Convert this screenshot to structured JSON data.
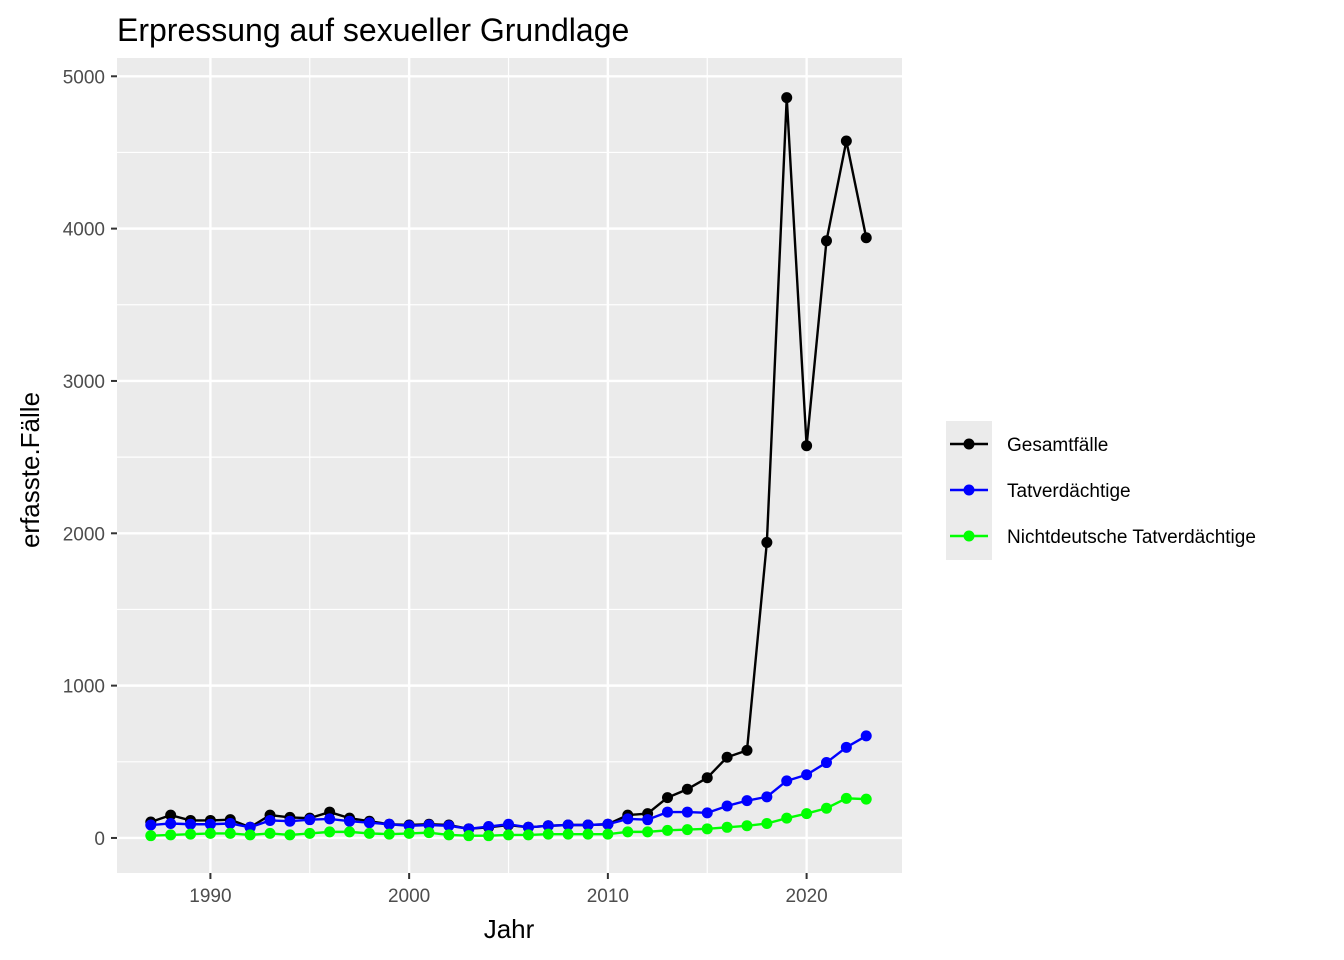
{
  "chart_data": {
    "type": "line",
    "title": "Erpressung auf sexueller Grundlage",
    "xlabel": "Jahr",
    "ylabel": "erfasste.Fälle",
    "xlim": [
      1985.3,
      2024.8
    ],
    "ylim": [
      -230,
      5120
    ],
    "x_ticks": [
      1990,
      2000,
      2010,
      2020
    ],
    "y_ticks": [
      0,
      1000,
      2000,
      3000,
      4000,
      5000
    ],
    "grid": true,
    "legend_position": "right",
    "x": [
      1987,
      1988,
      1989,
      1990,
      1991,
      1992,
      1993,
      1994,
      1995,
      1996,
      1997,
      1998,
      1999,
      2000,
      2001,
      2002,
      2003,
      2004,
      2005,
      2006,
      2007,
      2008,
      2009,
      2010,
      2011,
      2012,
      2013,
      2014,
      2015,
      2016,
      2017,
      2018,
      2019,
      2020,
      2021,
      2022,
      2023
    ],
    "series": [
      {
        "name": "Gesamtfälle",
        "color": "#000000",
        "values": [
          105,
          150,
          115,
          115,
          120,
          70,
          150,
          135,
          130,
          170,
          130,
          110,
          90,
          85,
          90,
          85,
          60,
          70,
          85,
          70,
          80,
          85,
          85,
          90,
          150,
          160,
          265,
          320,
          395,
          530,
          575,
          1940,
          4860,
          2575,
          3920,
          4575,
          3940
        ]
      },
      {
        "name": "Tatverdächtige",
        "color": "#0000ff",
        "values": [
          85,
          95,
          90,
          90,
          95,
          70,
          115,
          110,
          120,
          125,
          110,
          100,
          90,
          80,
          85,
          80,
          60,
          75,
          90,
          70,
          80,
          85,
          85,
          90,
          125,
          120,
          170,
          170,
          165,
          210,
          245,
          270,
          375,
          415,
          495,
          595,
          670
        ]
      },
      {
        "name": "Nichtdeutsche Tatverdächtige",
        "color": "#00ff00",
        "values": [
          15,
          20,
          25,
          30,
          30,
          20,
          30,
          20,
          30,
          40,
          40,
          30,
          25,
          30,
          35,
          20,
          15,
          15,
          20,
          20,
          25,
          25,
          25,
          25,
          40,
          40,
          50,
          55,
          60,
          70,
          80,
          95,
          130,
          160,
          195,
          260,
          255
        ]
      }
    ]
  }
}
